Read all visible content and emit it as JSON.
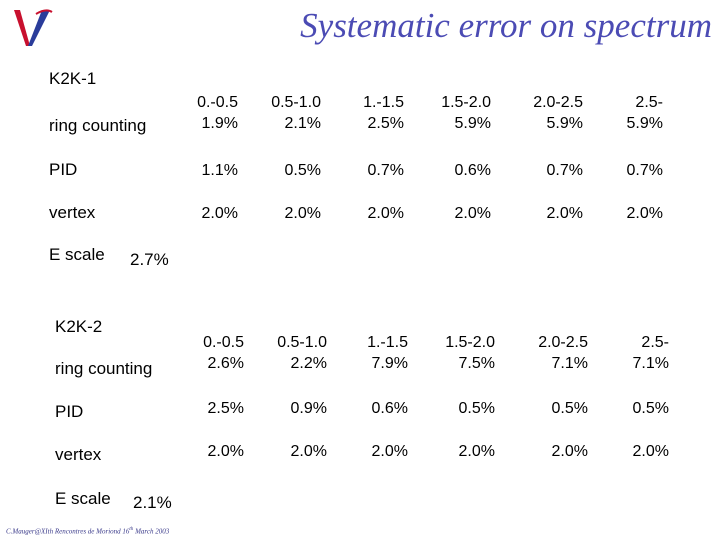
{
  "title": "Systematic error on spectrum",
  "k2k1": {
    "label": "K2K-1",
    "rows": [
      {
        "label": "ring counting",
        "cells": [
          "0.-0.5\n1.9%",
          "0.5-1.0\n2.1%",
          "1.-1.5\n2.5%",
          "1.5-2.0\n5.9%",
          "2.0-2.5\n5.9%",
          "2.5-\n5.9%"
        ]
      },
      {
        "label": "PID",
        "cells": [
          "1.1%",
          "0.5%",
          "0.7%",
          "0.6%",
          "0.7%",
          "0.7%"
        ]
      },
      {
        "label": "vertex",
        "cells": [
          "2.0%",
          "2.0%",
          "2.0%",
          "2.0%",
          "2.0%",
          "2.0%"
        ]
      }
    ],
    "escale_label": "E scale",
    "escale_value": "2.7%"
  },
  "k2k2": {
    "label": "K2K-2",
    "rows": [
      {
        "label": "ring counting",
        "cells": [
          "0.-0.5\n2.6%",
          "0.5-1.0\n2.2%",
          "1.-1.5\n7.9%",
          "1.5-2.0\n7.5%",
          "2.0-2.5\n7.1%",
          "2.5-\n7.1%"
        ]
      },
      {
        "label": "PID",
        "cells": [
          "2.5%",
          "0.9%",
          "0.6%",
          "0.5%",
          "0.5%",
          "0.5%"
        ]
      },
      {
        "label": "vertex",
        "cells": [
          "2.0%",
          "2.0%",
          "2.0%",
          "2.0%",
          "2.0%",
          "2.0%"
        ]
      }
    ],
    "escale_label": "E scale",
    "escale_value": "2.1%"
  },
  "footer": {
    "text": "C.Mauger@XIth Rencontres de Moriond 16",
    "sup": "th",
    "tail": " March 2003"
  },
  "colors": {
    "title": "#4b4bb4",
    "logo_red": "#c8102e",
    "logo_blue": "#2a3c9a"
  }
}
